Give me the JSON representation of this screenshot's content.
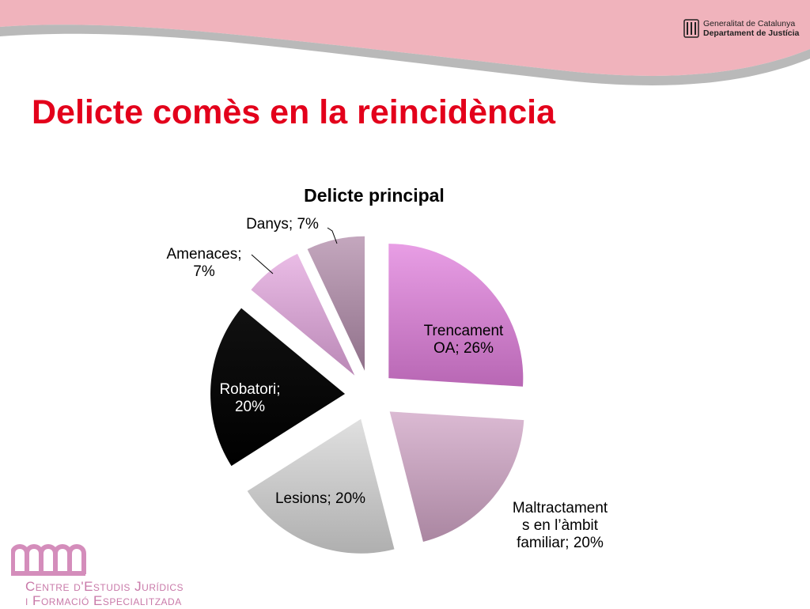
{
  "header": {
    "org_line1": "Generalitat de Catalunya",
    "org_line2": "Departament de Justícia"
  },
  "slide": {
    "title": "Delicte comès en la reincidència"
  },
  "footer": {
    "logo_line1": "Centre d'Estudis Jurídics",
    "logo_line2": "i Formació Especialitzada"
  },
  "colors": {
    "title": "#e3001b",
    "header_pink": "#f0b3bc",
    "header_gray": "#b9b9b9",
    "logo_pink": "#d48dbb"
  },
  "chart_data": {
    "type": "pie",
    "title": "Delicte principal",
    "slices": [
      {
        "label": "Trencament OA; 26%",
        "category": "Trencament OA",
        "value": 26,
        "color": "#e07ddc"
      },
      {
        "label": "Maltractaments en l'àmbit familiar; 20%",
        "category": "Maltractaments en l'àmbit familiar",
        "value": 20,
        "color": "#cfa3c4"
      },
      {
        "label": "Lesions; 20%",
        "category": "Lesions",
        "value": 20,
        "color": "#d6d6d6"
      },
      {
        "label": "Robatori; 20%",
        "category": "Robatori",
        "value": 20,
        "color": "#000000"
      },
      {
        "label": "Amenaces; 7%",
        "category": "Amenaces",
        "value": 7,
        "color": "#e3a6de"
      },
      {
        "label": "Danys; 7%",
        "category": "Danys",
        "value": 7,
        "color": "#b08aa8"
      }
    ],
    "legend": "none",
    "data_labels": true
  }
}
